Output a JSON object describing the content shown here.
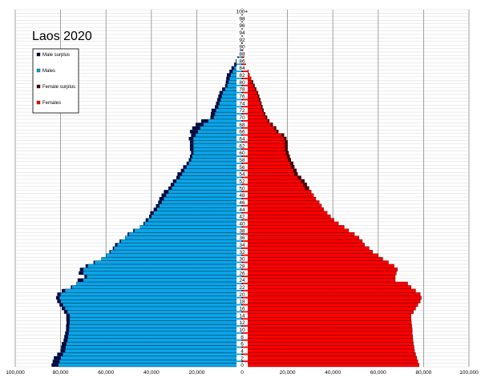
{
  "chart_data": {
    "type": "bar",
    "title": "Laos 2020",
    "orientation": "horizontal-population-pyramid",
    "xlim": [
      -100000,
      100000
    ],
    "x_ticks": [
      -100000,
      -80000,
      -60000,
      -40000,
      -20000,
      0,
      20000,
      40000,
      60000,
      80000,
      100000
    ],
    "x_tick_labels": [
      "100,000",
      "80,000",
      "60,000",
      "40,000",
      "20,000",
      "0",
      "20,000",
      "40,000",
      "60,000",
      "80,000",
      "100,000"
    ],
    "age_labels": [
      "100+",
      "98",
      "96",
      "94",
      "92",
      "90",
      "88",
      "86",
      "84",
      "82",
      "80",
      "78",
      "76",
      "74",
      "72",
      "70",
      "68",
      "66",
      "64",
      "62",
      "60",
      "58",
      "56",
      "54",
      "52",
      "50",
      "48",
      "46",
      "44",
      "42",
      "40",
      "38",
      "36",
      "34",
      "32",
      "30",
      "28",
      "26",
      "24",
      "22",
      "20",
      "18",
      "16",
      "14",
      "12",
      "10",
      "8",
      "6",
      "4",
      "2",
      "0"
    ],
    "ages": [
      0,
      1,
      2,
      3,
      4,
      5,
      6,
      7,
      8,
      9,
      10,
      11,
      12,
      13,
      14,
      15,
      16,
      17,
      18,
      19,
      20,
      21,
      22,
      23,
      24,
      25,
      26,
      27,
      28,
      29,
      30,
      31,
      32,
      33,
      34,
      35,
      36,
      37,
      38,
      39,
      40,
      41,
      42,
      43,
      44,
      45,
      46,
      47,
      48,
      49,
      50,
      51,
      52,
      53,
      54,
      55,
      56,
      57,
      58,
      59,
      60,
      61,
      62,
      63,
      64,
      65,
      66,
      67,
      68,
      69,
      70,
      71,
      72,
      73,
      74,
      75,
      76,
      77,
      78,
      79,
      80,
      81,
      82,
      83,
      84,
      85,
      86,
      87,
      88,
      89,
      90,
      91,
      92,
      93,
      94,
      95,
      96,
      97,
      98,
      99,
      100
    ],
    "series": [
      {
        "name": "Males",
        "color": "#0aa4e8",
        "values": [
          81000,
          80500,
          80000,
          79000,
          78000,
          77800,
          77500,
          77000,
          76800,
          76500,
          76300,
          76200,
          76000,
          76000,
          76000,
          77000,
          78000,
          79000,
          80000,
          80500,
          80000,
          78000,
          75000,
          73000,
          70000,
          68500,
          70000,
          70000,
          68000,
          65000,
          62000,
          60000,
          58000,
          56500,
          55000,
          53500,
          51500,
          50000,
          47500,
          45000,
          43000,
          41500,
          40000,
          39000,
          37500,
          36500,
          35500,
          34500,
          33500,
          32500,
          31000,
          30000,
          29000,
          27500,
          26500,
          25500,
          24500,
          23500,
          22500,
          22000,
          21500,
          21500,
          21500,
          21500,
          21500,
          20500,
          19500,
          18500,
          17000,
          15000,
          12500,
          12000,
          11500,
          10500,
          10000,
          9500,
          9000,
          8500,
          7500,
          6500,
          6000,
          5500,
          5000,
          4200,
          3500,
          2600,
          2000,
          1500,
          1000,
          700,
          450,
          300,
          200,
          120,
          80,
          50,
          30,
          20,
          10,
          5,
          5
        ]
      },
      {
        "name": "Females",
        "color": "#ff0000",
        "values": [
          78000,
          77500,
          77000,
          76500,
          76000,
          75800,
          75500,
          75300,
          75200,
          75000,
          75000,
          74800,
          74600,
          74500,
          74500,
          75500,
          76500,
          77500,
          78500,
          79000,
          78500,
          76500,
          74500,
          73000,
          67500,
          67500,
          68000,
          68500,
          67000,
          64500,
          62000,
          60000,
          57500,
          56000,
          54000,
          53000,
          51500,
          49500,
          47000,
          45000,
          42500,
          40500,
          39000,
          37500,
          36000,
          35000,
          34000,
          32500,
          31500,
          30500,
          29500,
          28500,
          27500,
          26000,
          24500,
          24000,
          23000,
          22500,
          21500,
          21000,
          20500,
          20000,
          20000,
          20000,
          19500,
          18500,
          16000,
          15000,
          13500,
          12000,
          11000,
          10200,
          9500,
          9000,
          8500,
          8000,
          7500,
          7000,
          6200,
          5500,
          4800,
          4000,
          3300,
          2800,
          2300,
          1700,
          1200,
          900,
          650,
          450,
          300,
          200,
          120,
          80,
          50,
          30,
          20,
          10,
          5,
          5,
          5
        ]
      },
      {
        "name": "Male surplus",
        "color": "#000b40",
        "values": [
          3000,
          3000,
          3000,
          2500,
          2000,
          2000,
          2000,
          1700,
          1600,
          1500,
          1300,
          1400,
          1400,
          1500,
          1500,
          1500,
          1500,
          1500,
          1500,
          1500,
          1500,
          1500,
          500,
          0,
          2500,
          1000,
          2000,
          1500,
          1000,
          500,
          0,
          0,
          500,
          500,
          1000,
          500,
          0,
          500,
          500,
          0,
          500,
          1000,
          1000,
          1500,
          1500,
          1500,
          1500,
          2000,
          2000,
          2000,
          1500,
          1500,
          1500,
          1500,
          2000,
          1500,
          1500,
          1000,
          1000,
          1000,
          1000,
          1500,
          1500,
          1500,
          2000,
          2000,
          3500,
          3500,
          3500,
          3000,
          1500,
          1800,
          2000,
          1500,
          1500,
          1500,
          1500,
          1500,
          1300,
          1000,
          1200,
          1500,
          1700,
          1400,
          1200,
          900,
          800,
          600,
          350,
          250,
          150,
          100,
          80,
          40,
          30,
          20,
          10,
          10,
          5,
          0,
          0
        ]
      },
      {
        "name": "Female surplus",
        "color": "#4a0000",
        "values": [
          0,
          0,
          0,
          0,
          0,
          0,
          0,
          0,
          0,
          0,
          0,
          0,
          0,
          0,
          0,
          0,
          0,
          0,
          0,
          0,
          0,
          0,
          0,
          0,
          0,
          0,
          0,
          0,
          0,
          0,
          0,
          0,
          0,
          0,
          0,
          0,
          0,
          0,
          0,
          0,
          0,
          0,
          0,
          0,
          0,
          0,
          0,
          0,
          0,
          0,
          0,
          0,
          0,
          0,
          0,
          0,
          0,
          0,
          0,
          0,
          0,
          0,
          0,
          0,
          0,
          0,
          0,
          0,
          0,
          0,
          0,
          0,
          0,
          0,
          0,
          0,
          0,
          0,
          0,
          0,
          0,
          0,
          0,
          0,
          0,
          0,
          0,
          0,
          0,
          0,
          0,
          0,
          0,
          0,
          0,
          0,
          0,
          0,
          0,
          0,
          0
        ]
      }
    ],
    "legend": [
      "Male surplus",
      "Males",
      "Female surplus",
      "Females"
    ],
    "legend_colors": [
      "#000b40",
      "#0aa4e8",
      "#4a0000",
      "#ff0000"
    ],
    "legend_placement": "top-left",
    "grid": true
  }
}
